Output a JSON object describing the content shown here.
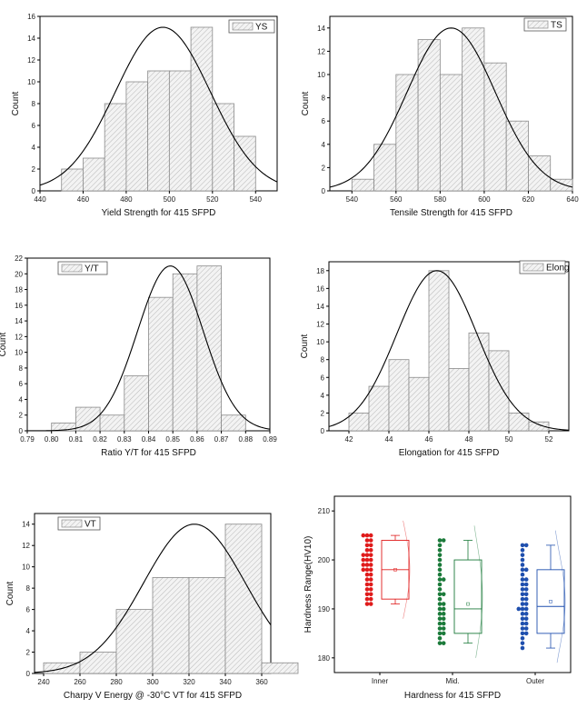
{
  "colors": {
    "inner": "#e01b1b",
    "mid": "#1b7a3a",
    "outer": "#1f4fae",
    "hatch": "#b8b8b8",
    "curve": "#000000"
  },
  "chart_data": [
    {
      "type": "bar",
      "subtype": "histogram",
      "legend": "YS",
      "legend_position": "top-right",
      "xlabel": "Yield Strength for 415 SFPD",
      "ylabel": "Count",
      "xlim": [
        440,
        550
      ],
      "ylim": [
        0,
        16
      ],
      "xticks": [
        440,
        460,
        480,
        500,
        520,
        540
      ],
      "yticks": [
        0,
        2,
        4,
        6,
        8,
        10,
        12,
        14,
        16
      ],
      "bin_width": 10,
      "bins": [
        {
          "x": 450,
          "count": 2
        },
        {
          "x": 460,
          "count": 3
        },
        {
          "x": 470,
          "count": 8
        },
        {
          "x": 480,
          "count": 10
        },
        {
          "x": 490,
          "count": 11
        },
        {
          "x": 500,
          "count": 11
        },
        {
          "x": 510,
          "count": 15
        },
        {
          "x": 520,
          "count": 8
        },
        {
          "x": 530,
          "count": 5
        }
      ],
      "normal_fit": {
        "mean": 497,
        "sd": 22,
        "peak": 15
      }
    },
    {
      "type": "bar",
      "subtype": "histogram",
      "legend": "TS",
      "legend_position": "top-right",
      "xlabel": "Tensile Strength for 415 SFPD",
      "ylabel": "Count",
      "xlim": [
        530,
        640
      ],
      "ylim": [
        0,
        15
      ],
      "xticks": [
        540,
        560,
        580,
        600,
        620,
        640
      ],
      "yticks": [
        0,
        2,
        4,
        6,
        8,
        10,
        12,
        14
      ],
      "bin_width": 10,
      "bins": [
        {
          "x": 540,
          "count": 1
        },
        {
          "x": 550,
          "count": 4
        },
        {
          "x": 560,
          "count": 10
        },
        {
          "x": 570,
          "count": 13
        },
        {
          "x": 580,
          "count": 10
        },
        {
          "x": 590,
          "count": 14
        },
        {
          "x": 600,
          "count": 11
        },
        {
          "x": 610,
          "count": 6
        },
        {
          "x": 620,
          "count": 3
        },
        {
          "x": 630,
          "count": 1
        }
      ],
      "normal_fit": {
        "mean": 585,
        "sd": 20,
        "peak": 14
      }
    },
    {
      "type": "bar",
      "subtype": "histogram",
      "legend": "Y/T",
      "legend_position": "top-left",
      "xlabel": "Ratio Y/T for 415 SFPD",
      "ylabel": "Count",
      "xlim": [
        0.79,
        0.89
      ],
      "ylim": [
        0,
        22
      ],
      "xticks": [
        0.79,
        0.8,
        0.81,
        0.82,
        0.83,
        0.84,
        0.85,
        0.86,
        0.87,
        0.88,
        0.89
      ],
      "xtick_labels": [
        "0.79",
        "0.80",
        "0.81",
        "0.82",
        "0.83",
        "0.84",
        "0.85",
        "0.86",
        "0.87",
        "0.88",
        "0.89"
      ],
      "yticks": [
        0,
        2,
        4,
        6,
        8,
        10,
        12,
        14,
        16,
        18,
        20,
        22
      ],
      "bin_width": 0.01,
      "bins": [
        {
          "x": 0.8,
          "count": 1
        },
        {
          "x": 0.81,
          "count": 3
        },
        {
          "x": 0.82,
          "count": 2
        },
        {
          "x": 0.83,
          "count": 7
        },
        {
          "x": 0.84,
          "count": 17
        },
        {
          "x": 0.85,
          "count": 20
        },
        {
          "x": 0.86,
          "count": 21
        },
        {
          "x": 0.87,
          "count": 2
        }
      ],
      "normal_fit": {
        "mean": 0.849,
        "sd": 0.0135,
        "peak": 21
      }
    },
    {
      "type": "bar",
      "subtype": "histogram",
      "legend": "Elong",
      "legend_position": "top-right",
      "xlabel": "Elongation for 415 SFPD",
      "ylabel": "Count",
      "xlim": [
        41,
        53
      ],
      "ylim": [
        0,
        19
      ],
      "xticks": [
        42,
        44,
        46,
        48,
        50,
        52
      ],
      "yticks": [
        0,
        2,
        4,
        6,
        8,
        10,
        12,
        14,
        16,
        18
      ],
      "bin_width": 1,
      "bins": [
        {
          "x": 42,
          "count": 2
        },
        {
          "x": 43,
          "count": 5
        },
        {
          "x": 44,
          "count": 8
        },
        {
          "x": 45,
          "count": 6
        },
        {
          "x": 46,
          "count": 18
        },
        {
          "x": 47,
          "count": 7
        },
        {
          "x": 48,
          "count": 11
        },
        {
          "x": 49,
          "count": 9
        },
        {
          "x": 50,
          "count": 2
        },
        {
          "x": 51,
          "count": 1
        }
      ],
      "normal_fit": {
        "mean": 46.4,
        "sd": 2.0,
        "peak": 18
      }
    },
    {
      "type": "bar",
      "subtype": "histogram",
      "legend": "VT",
      "legend_position": "top-left",
      "xlabel": "Charpy V Energy @ -30°C VT for 415 SFPD",
      "ylabel": "Count",
      "xlim": [
        235,
        365
      ],
      "ylim": [
        0,
        15
      ],
      "xticks": [
        240,
        260,
        280,
        300,
        320,
        340,
        360
      ],
      "yticks": [
        0,
        2,
        4,
        6,
        8,
        10,
        12,
        14
      ],
      "bin_width": 20,
      "bins": [
        {
          "x": 240,
          "count": 1
        },
        {
          "x": 260,
          "count": 2
        },
        {
          "x": 280,
          "count": 6
        },
        {
          "x": 300,
          "count": 9
        },
        {
          "x": 320,
          "count": 9
        },
        {
          "x": 340,
          "count": 14
        },
        {
          "x": 360,
          "count": 1
        }
      ],
      "normal_fit": {
        "mean": 323,
        "sd": 28,
        "peak": 14
      }
    },
    {
      "type": "scatter",
      "subtype": "box-with-points",
      "xlabel": "Hardness for 415 SFPD",
      "ylabel": "Hardness Range(HV10)",
      "ylim": [
        177,
        213
      ],
      "yticks": [
        180,
        190,
        200,
        210
      ],
      "categories": [
        "Inner",
        "Mid.",
        "Outer"
      ],
      "series": [
        {
          "name": "Inner",
          "box": {
            "min": 191,
            "q1": 192,
            "median": 198,
            "mean": 198,
            "q3": 204,
            "max": 205
          },
          "points": [
            205,
            205,
            205,
            204,
            204,
            203,
            203,
            202,
            202,
            201,
            201,
            201,
            200,
            200,
            200,
            199,
            199,
            199,
            198,
            198,
            198,
            197,
            197,
            196,
            196,
            195,
            195,
            194,
            194,
            193,
            193,
            192,
            192,
            191,
            191
          ]
        },
        {
          "name": "Mid.",
          "box": {
            "min": 183,
            "q1": 185,
            "median": 190,
            "mean": 191,
            "q3": 200,
            "max": 204
          },
          "points": [
            204,
            204,
            203,
            202,
            201,
            200,
            199,
            198,
            197,
            196,
            196,
            195,
            194,
            193,
            193,
            192,
            191,
            191,
            190,
            190,
            189,
            189,
            188,
            188,
            187,
            187,
            186,
            186,
            185,
            185,
            184,
            183,
            183
          ]
        },
        {
          "name": "Outer",
          "box": {
            "min": 182,
            "q1": 185,
            "median": 190.5,
            "mean": 191.5,
            "q3": 198,
            "max": 203
          },
          "points": [
            203,
            203,
            202,
            201,
            200,
            199,
            198,
            198,
            197,
            196,
            196,
            195,
            195,
            194,
            194,
            193,
            193,
            192,
            192,
            191,
            191,
            190,
            190,
            190,
            189,
            189,
            188,
            188,
            187,
            187,
            186,
            186,
            185,
            185,
            184,
            183,
            182
          ]
        }
      ]
    }
  ]
}
